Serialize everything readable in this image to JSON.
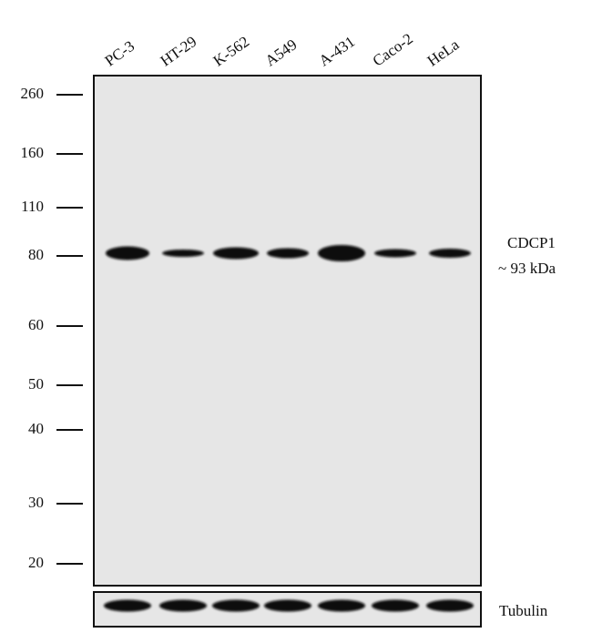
{
  "lanes": [
    "PC-3",
    "HT-29",
    "K-562",
    "A549",
    "A-431",
    "Caco-2",
    "HeLa"
  ],
  "markers": [
    260,
    160,
    110,
    80,
    60,
    50,
    40,
    30,
    20
  ],
  "target": {
    "name": "CDCP1",
    "size": "~ 93  kDa"
  },
  "loading_control": "Tubulin"
}
